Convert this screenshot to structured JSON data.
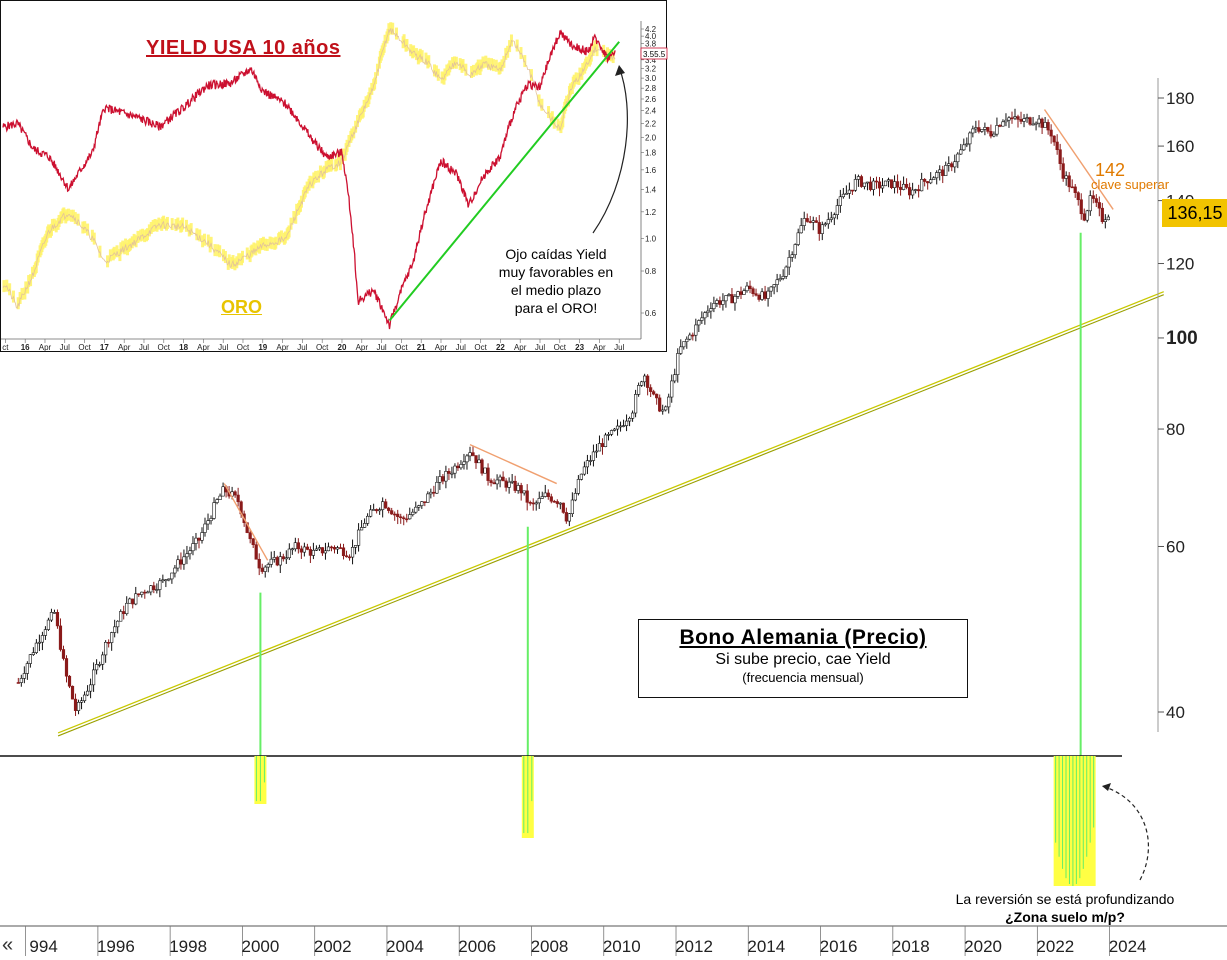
{
  "chart_data": [
    {
      "type": "candlestick",
      "frequency": "mensual",
      "title": "Bono Alemania (Precio)",
      "subtitle": "Si sube precio, cae Yield",
      "note": "(frecuencia mensual)",
      "y_scale": "log",
      "ylim": [
        36,
        190
      ],
      "xlim": [
        1993.3,
        2024.5
      ],
      "y_ticks": [
        {
          "label": "180",
          "value": 180
        },
        {
          "label": "160",
          "value": 160
        },
        {
          "label": "140",
          "value": 140
        },
        {
          "label": "120",
          "value": 120
        },
        {
          "label": "100",
          "value": 100
        },
        {
          "label": "80",
          "value": 80
        },
        {
          "label": "60",
          "value": 60
        },
        {
          "label": "40",
          "value": 40
        }
      ],
      "x_ticks": [
        "994",
        "1996",
        "1998",
        "2000",
        "2002",
        "2004",
        "2006",
        "2008",
        "2010",
        "2012",
        "2014",
        "2016",
        "2018",
        "2020",
        "2022",
        "2024"
      ],
      "last_price": "136,15",
      "level": {
        "value": 142,
        "label": "142",
        "note": "clave superar"
      },
      "price_path": [
        [
          1993.3,
          43
        ],
        [
          1994.0,
          49
        ],
        [
          1994.3,
          51
        ],
        [
          1994.6,
          44
        ],
        [
          1994.9,
          40
        ],
        [
          1995.3,
          43
        ],
        [
          1995.8,
          48
        ],
        [
          1996.3,
          52
        ],
        [
          1996.8,
          54
        ],
        [
          1997.3,
          55
        ],
        [
          1997.8,
          58
        ],
        [
          1998.3,
          61
        ],
        [
          1998.8,
          67
        ],
        [
          1999.0,
          69
        ],
        [
          1999.4,
          67
        ],
        [
          1999.7,
          61
        ],
        [
          2000.0,
          57
        ],
        [
          2000.5,
          58
        ],
        [
          2001.0,
          60
        ],
        [
          2001.5,
          59
        ],
        [
          2002.0,
          60
        ],
        [
          2002.5,
          59
        ],
        [
          2002.9,
          64
        ],
        [
          2003.4,
          67
        ],
        [
          2003.9,
          64
        ],
        [
          2004.4,
          66
        ],
        [
          2004.9,
          70
        ],
        [
          2005.4,
          73
        ],
        [
          2005.8,
          76
        ],
        [
          2006.3,
          71
        ],
        [
          2006.8,
          70
        ],
        [
          2007.2,
          69
        ],
        [
          2007.5,
          66
        ],
        [
          2007.9,
          68
        ],
        [
          2008.3,
          67
        ],
        [
          2008.5,
          64
        ],
        [
          2008.9,
          72
        ],
        [
          2009.4,
          77
        ],
        [
          2009.9,
          80
        ],
        [
          2010.3,
          84
        ],
        [
          2010.6,
          92
        ],
        [
          2010.9,
          86
        ],
        [
          2011.2,
          83
        ],
        [
          2011.6,
          97
        ],
        [
          2012.0,
          102
        ],
        [
          2012.5,
          109
        ],
        [
          2013.0,
          110
        ],
        [
          2013.5,
          113
        ],
        [
          2014.0,
          110
        ],
        [
          2014.5,
          118
        ],
        [
          2015.1,
          135
        ],
        [
          2015.5,
          130
        ],
        [
          2016.0,
          139
        ],
        [
          2016.5,
          147
        ],
        [
          2017.0,
          145
        ],
        [
          2017.5,
          146
        ],
        [
          2018.0,
          143
        ],
        [
          2018.5,
          148
        ],
        [
          2019.0,
          151
        ],
        [
          2019.5,
          160
        ],
        [
          2019.8,
          168
        ],
        [
          2020.2,
          165
        ],
        [
          2020.6,
          172
        ],
        [
          2021.0,
          170
        ],
        [
          2021.5,
          171
        ],
        [
          2021.9,
          165
        ],
        [
          2022.2,
          150
        ],
        [
          2022.5,
          143
        ],
        [
          2022.8,
          135
        ],
        [
          2023.0,
          141
        ],
        [
          2023.3,
          134
        ],
        [
          2023.5,
          136.15
        ]
      ],
      "trendline": [
        [
          1994.4,
          38
        ],
        [
          2025.0,
          112
        ]
      ],
      "downtrends": [
        {
          "from": [
            1999.0,
            70
          ],
          "to": [
            2000.2,
            58
          ]
        },
        {
          "from": [
            2005.8,
            77
          ],
          "to": [
            2008.2,
            70
          ]
        },
        {
          "from": [
            2021.7,
            175
          ],
          "to": [
            2023.6,
            137
          ]
        }
      ],
      "lows_marked": [
        2000.0,
        2007.4,
        2022.7
      ]
    },
    {
      "type": "line",
      "title": "YIELD USA 10 años",
      "series": [
        {
          "name": "YIELD USA 10 años",
          "color": "#cc1030"
        },
        {
          "name": "ORO",
          "color": "#e8c400"
        }
      ],
      "x_ticks": [
        "ct",
        "16",
        "Apr",
        "Jul",
        "Oct",
        "17",
        "Apr",
        "Jul",
        "Oct",
        "18",
        "Apr",
        "Jul",
        "Oct",
        "19",
        "Apr",
        "Jul",
        "Oct",
        "20",
        "Apr",
        "Jul",
        "Oct",
        "21",
        "Apr",
        "Jul",
        "Oct",
        "22",
        "Apr",
        "Jul",
        "Oct",
        "23",
        "Apr",
        "Jul"
      ],
      "y_ticks": [
        "4.2",
        "4.0",
        "3.8",
        "3.6",
        "3.4",
        "3.2",
        "3.0",
        "2.8",
        "2.6",
        "2.4",
        "2.2",
        "2.0",
        "1.8",
        "1.6",
        "1.4",
        "1.2",
        "1.0",
        "0.8",
        "0.6"
      ],
      "y_scale": "log",
      "ylim": [
        0.52,
        4.3
      ],
      "last_value": "3.55.5",
      "yield_path": [
        [
          2015.75,
          2.15
        ],
        [
          2015.9,
          2.2
        ],
        [
          2016.1,
          1.85
        ],
        [
          2016.3,
          1.75
        ],
        [
          2016.55,
          1.4
        ],
        [
          2016.85,
          1.8
        ],
        [
          2017.0,
          2.45
        ],
        [
          2017.4,
          2.3
        ],
        [
          2017.7,
          2.15
        ],
        [
          2018.0,
          2.45
        ],
        [
          2018.3,
          2.85
        ],
        [
          2018.6,
          2.9
        ],
        [
          2018.85,
          3.2
        ],
        [
          2019.0,
          2.75
        ],
        [
          2019.3,
          2.5
        ],
        [
          2019.6,
          2.0
        ],
        [
          2019.8,
          1.75
        ],
        [
          2020.0,
          1.8
        ],
        [
          2020.2,
          0.65
        ],
        [
          2020.4,
          0.7
        ],
        [
          2020.6,
          0.55
        ],
        [
          2020.9,
          0.85
        ],
        [
          2021.1,
          1.3
        ],
        [
          2021.25,
          1.7
        ],
        [
          2021.45,
          1.55
        ],
        [
          2021.6,
          1.25
        ],
        [
          2021.8,
          1.55
        ],
        [
          2022.0,
          1.75
        ],
        [
          2022.15,
          2.3
        ],
        [
          2022.35,
          2.9
        ],
        [
          2022.5,
          2.8
        ],
        [
          2022.75,
          4.1
        ],
        [
          2022.9,
          3.75
        ],
        [
          2023.1,
          3.6
        ],
        [
          2023.2,
          3.95
        ],
        [
          2023.35,
          3.45
        ],
        [
          2023.45,
          3.55
        ]
      ],
      "gold_path": [
        [
          2015.75,
          0.73
        ],
        [
          2015.9,
          0.62
        ],
        [
          2016.1,
          0.78
        ],
        [
          2016.3,
          1.05
        ],
        [
          2016.55,
          1.2
        ],
        [
          2016.85,
          1.0
        ],
        [
          2017.0,
          0.85
        ],
        [
          2017.4,
          0.98
        ],
        [
          2017.7,
          1.1
        ],
        [
          2018.0,
          1.08
        ],
        [
          2018.3,
          0.97
        ],
        [
          2018.6,
          0.83
        ],
        [
          2018.85,
          0.9
        ],
        [
          2019.0,
          0.95
        ],
        [
          2019.3,
          1.0
        ],
        [
          2019.6,
          1.45
        ],
        [
          2019.8,
          1.6
        ],
        [
          2020.0,
          1.7
        ],
        [
          2020.2,
          2.2
        ],
        [
          2020.4,
          2.8
        ],
        [
          2020.6,
          4.2
        ],
        [
          2020.9,
          3.55
        ],
        [
          2021.1,
          3.3
        ],
        [
          2021.25,
          2.95
        ],
        [
          2021.45,
          3.4
        ],
        [
          2021.6,
          3.05
        ],
        [
          2021.8,
          3.3
        ],
        [
          2022.0,
          3.15
        ],
        [
          2022.15,
          3.9
        ],
        [
          2022.35,
          3.2
        ],
        [
          2022.5,
          2.5
        ],
        [
          2022.75,
          2.1
        ],
        [
          2022.9,
          2.8
        ],
        [
          2023.1,
          3.3
        ],
        [
          2023.2,
          3.7
        ],
        [
          2023.35,
          3.5
        ],
        [
          2023.45,
          3.4
        ]
      ],
      "trendline": [
        [
          2020.6,
          0.57
        ],
        [
          2023.5,
          3.85
        ]
      ],
      "xlim": [
        2015.72,
        2023.75
      ]
    }
  ],
  "inset": {
    "title": "YIELD USA 10 años",
    "gold_label": "ORO",
    "note": [
      "Ojo caídas Yield",
      "muy favorables en",
      "el medio plazo",
      "para el ORO!"
    ]
  },
  "oscillator": {
    "note_line1": "La reversión se está profundizando",
    "note_line2": "¿Zona suelo m/p?"
  },
  "nav": {
    "arrows": "«"
  },
  "colors": {
    "candle": "#111111",
    "trendline": "#c8c800",
    "downtrend": "#f0a070",
    "vertical_markers": "#66ee66",
    "oscillator_fill": "#ffff44",
    "level": "#e07a00",
    "last_price_bg": "#f2c300"
  }
}
